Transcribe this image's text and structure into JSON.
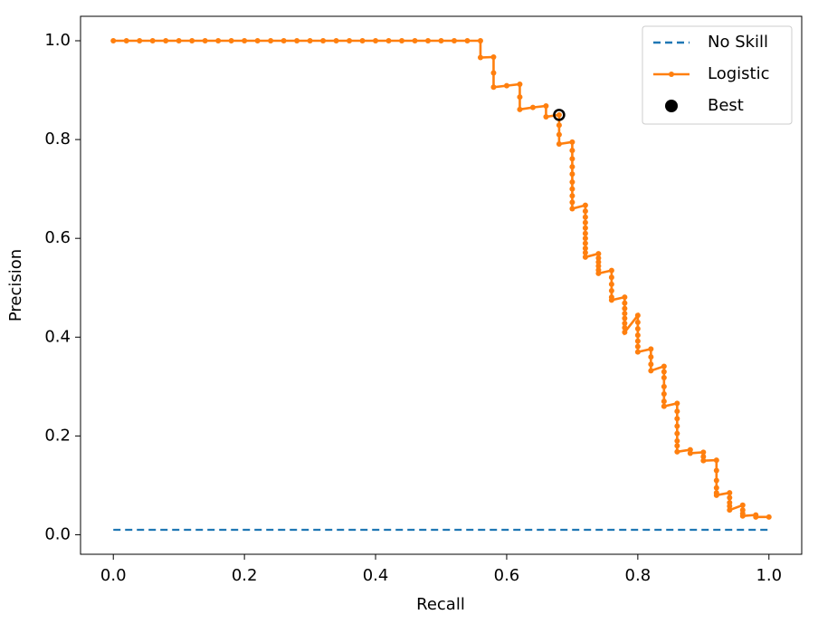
{
  "chart_data": {
    "type": "line",
    "xlabel": "Recall",
    "ylabel": "Precision",
    "xlim": [
      -0.05,
      1.05
    ],
    "ylim": [
      -0.0395,
      1.0495
    ],
    "xticks": [
      {
        "value": 0,
        "label": "0.0"
      },
      0.2,
      0.4,
      0.6,
      0.8,
      {
        "value": 1,
        "label": "1.0"
      }
    ],
    "yticks": [
      {
        "value": 0,
        "label": "0.0"
      },
      0.2,
      0.4,
      0.6,
      0.8,
      {
        "value": 1,
        "label": "1.0"
      }
    ],
    "legend": "upper right",
    "series": [
      {
        "name": "No Skill",
        "color": "#1f77b4",
        "style": "dashed",
        "x": [
          0,
          1
        ],
        "values": [
          0.01,
          0.01
        ]
      },
      {
        "name": "Logistic",
        "color": "#ff7f0e",
        "style": "line-marker",
        "x": [
          0,
          0.02,
          0.04,
          0.06,
          0.08,
          0.1,
          0.12,
          0.14,
          0.16,
          0.18,
          0.2,
          0.22,
          0.24,
          0.26,
          0.28,
          0.3,
          0.32,
          0.34,
          0.36,
          0.38,
          0.4,
          0.42,
          0.44,
          0.46,
          0.48,
          0.5,
          0.52,
          0.54,
          0.56,
          0.56,
          0.58,
          0.58,
          0.58,
          0.6,
          0.62,
          0.62,
          0.62,
          0.64,
          0.66,
          0.66,
          0.68,
          0.68,
          0.68,
          0.68,
          0.7,
          0.7,
          0.7,
          0.7,
          0.7,
          0.7,
          0.7,
          0.7,
          0.7,
          0.7,
          0.72,
          0.72,
          0.72,
          0.72,
          0.72,
          0.72,
          0.72,
          0.72,
          0.72,
          0.72,
          0.72,
          0.74,
          0.74,
          0.74,
          0.74,
          0.74,
          0.74,
          0.76,
          0.76,
          0.76,
          0.76,
          0.76,
          0.76,
          0.78,
          0.78,
          0.78,
          0.78,
          0.78,
          0.78,
          0.78,
          0.78,
          0.8,
          0.8,
          0.8,
          0.8,
          0.8,
          0.8,
          0.8,
          0.82,
          0.82,
          0.82,
          0.82,
          0.84,
          0.84,
          0.84,
          0.84,
          0.84,
          0.84,
          0.84,
          0.86,
          0.86,
          0.86,
          0.86,
          0.86,
          0.86,
          0.86,
          0.86,
          0.88,
          0.88,
          0.9,
          0.9,
          0.9,
          0.92,
          0.92,
          0.92,
          0.92,
          0.92,
          0.92,
          0.94,
          0.94,
          0.94,
          0.94,
          0.94,
          0.96,
          0.96,
          0.96,
          0.96,
          0.98,
          0.98,
          1
        ],
        "values": [
          1,
          1,
          1,
          1,
          1,
          1,
          1,
          1,
          1,
          1,
          1,
          1,
          1,
          1,
          1,
          1,
          1,
          1,
          1,
          1,
          1,
          1,
          1,
          1,
          1,
          1,
          1,
          1,
          1,
          0.966,
          0.967,
          0.935,
          0.906,
          0.909,
          0.912,
          0.886,
          0.861,
          0.865,
          0.868,
          0.846,
          0.85,
          0.829,
          0.81,
          0.791,
          0.795,
          0.778,
          0.761,
          0.745,
          0.73,
          0.714,
          0.7,
          0.686,
          0.673,
          0.66,
          0.667,
          0.655,
          0.643,
          0.632,
          0.621,
          0.61,
          0.6,
          0.59,
          0.58,
          0.571,
          0.562,
          0.569,
          0.56,
          0.552,
          0.544,
          0.536,
          0.529,
          0.535,
          0.521,
          0.507,
          0.494,
          0.481,
          0.475,
          0.481,
          0.469,
          0.458,
          0.448,
          0.438,
          0.428,
          0.419,
          0.41,
          0.444,
          0.43,
          0.417,
          0.404,
          0.392,
          0.381,
          0.37,
          0.376,
          0.36,
          0.345,
          0.332,
          0.341,
          0.33,
          0.318,
          0.3,
          0.285,
          0.27,
          0.26,
          0.266,
          0.25,
          0.235,
          0.22,
          0.205,
          0.19,
          0.18,
          0.168,
          0.172,
          0.165,
          0.167,
          0.158,
          0.15,
          0.151,
          0.13,
          0.11,
          0.095,
          0.085,
          0.08,
          0.085,
          0.075,
          0.065,
          0.058,
          0.05,
          0.06,
          0.05,
          0.043,
          0.038,
          0.04,
          0.036,
          0.036
        ]
      },
      {
        "name": "Best",
        "color": "#000000",
        "style": "point",
        "x": [
          0.68
        ],
        "values": [
          0.85
        ]
      }
    ]
  }
}
